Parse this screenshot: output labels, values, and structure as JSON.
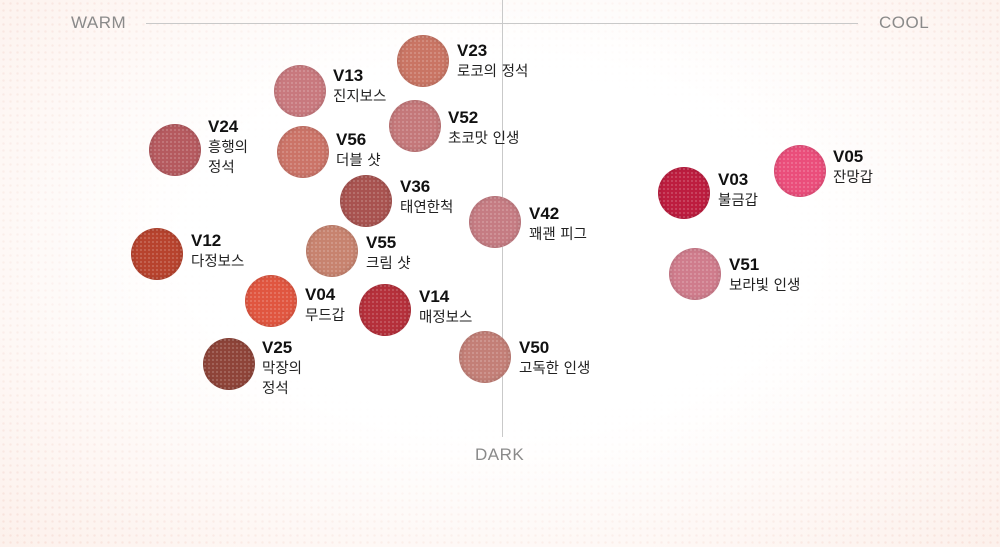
{
  "axes": {
    "left": "WARM",
    "right": "COOL",
    "bottom": "DARK"
  },
  "shades": [
    {
      "code": "V23",
      "name": "로코의 정석",
      "color": "#c97564"
    },
    {
      "code": "V13",
      "name": "진지보스",
      "color": "#c8797e"
    },
    {
      "code": "V52",
      "name": "초코맛 인생",
      "color": "#c4787a"
    },
    {
      "code": "V24",
      "name": "흥행의\n정석",
      "color": "#b55a5f"
    },
    {
      "code": "V56",
      "name": "더블 샷",
      "color": "#cb7468"
    },
    {
      "code": "V36",
      "name": "태연한척",
      "color": "#a85350"
    },
    {
      "code": "V42",
      "name": "꽤괜 피그",
      "color": "#c57c83"
    },
    {
      "code": "V12",
      "name": "다정보스",
      "color": "#b7432e"
    },
    {
      "code": "V55",
      "name": "크림 샷",
      "color": "#c7836f"
    },
    {
      "code": "V04",
      "name": "무드갑",
      "color": "#e05640"
    },
    {
      "code": "V14",
      "name": "매정보스",
      "color": "#b5303b"
    },
    {
      "code": "V25",
      "name": "막장의\n정석",
      "color": "#8e4439"
    },
    {
      "code": "V50",
      "name": "고독한 인생",
      "color": "#c37f77"
    },
    {
      "code": "V03",
      "name": "불금갑",
      "color": "#bd1d3f"
    },
    {
      "code": "V05",
      "name": "잔망갑",
      "color": "#ea4e7b"
    },
    {
      "code": "V51",
      "name": "보라빛 인생",
      "color": "#cf7c8c"
    }
  ]
}
